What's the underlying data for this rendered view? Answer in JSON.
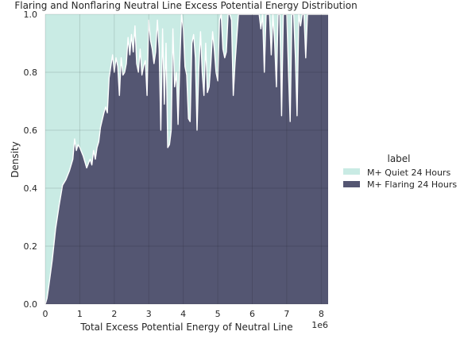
{
  "chart_data": {
    "type": "area",
    "stacking": "fill",
    "title": "Flaring and Nonflaring Neutral Line Excess Potential Energy Distribution",
    "xlabel": "Total Excess Potential Energy of Neutral Line",
    "ylabel": "Density",
    "x_offset_text": "1e6",
    "xlim": [
      0,
      8.2
    ],
    "ylim": [
      0,
      1.0
    ],
    "xticks": [
      0,
      1,
      2,
      3,
      4,
      5,
      6,
      7,
      8
    ],
    "yticks": [
      0.0,
      0.2,
      0.4,
      0.6,
      0.8,
      1.0
    ],
    "xtick_labels": [
      "0",
      "1",
      "2",
      "3",
      "4",
      "5",
      "6",
      "7",
      "8"
    ],
    "ytick_labels": [
      "0.0",
      "0.2",
      "0.4",
      "0.6",
      "0.8",
      "1.0"
    ],
    "grid": true,
    "legend_title": "label",
    "legend_position": "right",
    "series": [
      {
        "name": "M+ Quiet 24 Hours",
        "color": "#c9ebe4"
      },
      {
        "name": "M+ Flaring 24 Hours",
        "color": "#545672"
      }
    ],
    "boundary": {
      "description": "flaring share (lower area) as a function of x (x in units of 1e6)",
      "x": [
        0,
        0.05,
        0.1,
        0.2,
        0.3,
        0.4,
        0.5,
        0.6,
        0.7,
        0.8,
        0.85,
        0.9,
        0.95,
        1.0,
        1.1,
        1.2,
        1.3,
        1.35,
        1.4,
        1.45,
        1.5,
        1.55,
        1.6,
        1.7,
        1.75,
        1.8,
        1.85,
        1.9,
        1.95,
        2.0,
        2.05,
        2.1,
        2.15,
        2.2,
        2.25,
        2.3,
        2.35,
        2.4,
        2.45,
        2.5,
        2.55,
        2.6,
        2.65,
        2.7,
        2.75,
        2.8,
        2.85,
        2.9,
        2.95,
        3.0,
        3.05,
        3.1,
        3.15,
        3.2,
        3.25,
        3.3,
        3.35,
        3.4,
        3.45,
        3.5,
        3.55,
        3.6,
        3.65,
        3.7,
        3.75,
        3.8,
        3.85,
        3.9,
        3.95,
        4.0,
        4.05,
        4.1,
        4.15,
        4.2,
        4.25,
        4.3,
        4.35,
        4.4,
        4.45,
        4.5,
        4.55,
        4.6,
        4.65,
        4.7,
        4.75,
        4.8,
        4.85,
        4.9,
        4.95,
        5.0,
        5.05,
        5.1,
        5.15,
        5.2,
        5.25,
        5.3,
        5.35,
        5.4,
        5.45,
        5.5,
        5.6,
        5.7,
        5.8,
        5.9,
        6.0,
        6.1,
        6.2,
        6.25,
        6.3,
        6.35,
        6.4,
        6.5,
        6.55,
        6.6,
        6.65,
        6.7,
        6.75,
        6.8,
        6.85,
        6.9,
        6.95,
        7.0,
        7.05,
        7.1,
        7.15,
        7.2,
        7.25,
        7.3,
        7.35,
        7.4,
        7.45,
        7.5,
        7.55,
        7.6,
        7.65,
        7.7,
        7.8,
        7.9,
        8.0,
        8.1,
        8.2
      ],
      "y": [
        0.0,
        0.02,
        0.06,
        0.15,
        0.26,
        0.34,
        0.41,
        0.43,
        0.46,
        0.5,
        0.57,
        0.53,
        0.55,
        0.54,
        0.51,
        0.47,
        0.5,
        0.48,
        0.53,
        0.5,
        0.54,
        0.56,
        0.61,
        0.66,
        0.68,
        0.66,
        0.78,
        0.82,
        0.86,
        0.8,
        0.85,
        0.82,
        0.72,
        0.85,
        0.79,
        0.8,
        0.83,
        0.92,
        0.86,
        0.93,
        0.87,
        0.96,
        0.83,
        0.8,
        0.88,
        0.79,
        0.82,
        0.84,
        0.72,
        0.98,
        0.91,
        0.88,
        0.83,
        0.87,
        0.98,
        0.88,
        0.6,
        0.95,
        0.69,
        0.9,
        0.54,
        0.55,
        0.6,
        0.95,
        0.75,
        0.8,
        0.62,
        0.83,
        1.0,
        0.95,
        0.82,
        0.79,
        0.64,
        0.63,
        0.9,
        0.93,
        0.85,
        0.6,
        0.81,
        0.94,
        0.8,
        0.72,
        0.9,
        0.73,
        0.75,
        0.83,
        0.94,
        0.88,
        0.8,
        0.77,
        0.98,
        1.0,
        0.88,
        0.85,
        0.87,
        1.0,
        1.0,
        0.98,
        0.72,
        0.83,
        1.0,
        1.0,
        1.0,
        1.0,
        1.0,
        1.0,
        1.0,
        0.95,
        1.0,
        0.8,
        1.0,
        1.0,
        0.86,
        1.0,
        0.9,
        0.75,
        1.0,
        1.0,
        0.65,
        1.0,
        1.0,
        1.0,
        0.8,
        0.63,
        1.0,
        1.0,
        0.85,
        0.65,
        1.0,
        0.96,
        1.0,
        1.0,
        0.85,
        1.0,
        1.0,
        1.0,
        1.0,
        1.0,
        1.0,
        1.0,
        1.0
      ]
    }
  }
}
